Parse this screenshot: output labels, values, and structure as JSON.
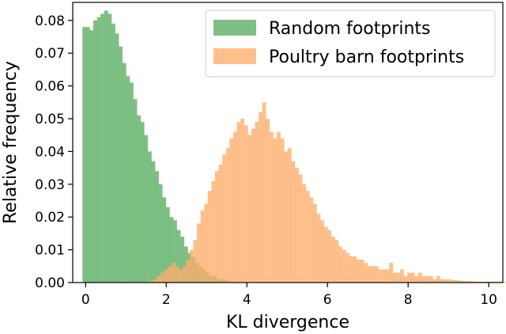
{
  "chart_data": {
    "type": "histogram",
    "xlabel": "KL divergence",
    "ylabel": "Relative frequency",
    "xlim": [
      -0.32,
      10.35
    ],
    "ylim": [
      0.0,
      0.0855
    ],
    "xticks": [
      0,
      2,
      4,
      6,
      8,
      10
    ],
    "yticks": [
      0.0,
      0.01,
      0.02,
      0.03,
      0.04,
      0.05,
      0.06,
      0.07,
      0.08
    ],
    "ytick_labels": [
      "0.00",
      "0.01",
      "0.02",
      "0.03",
      "0.04",
      "0.05",
      "0.06",
      "0.07",
      "0.08"
    ],
    "grid": false,
    "legend_position": "top-right",
    "series": [
      {
        "name": "Random footprints",
        "color": "#5aae61",
        "bin_start": -0.08,
        "bin_width": 0.09,
        "values": [
          0.078,
          0.078,
          0.077,
          0.08,
          0.081,
          0.082,
          0.083,
          0.082,
          0.079,
          0.076,
          0.072,
          0.067,
          0.063,
          0.061,
          0.056,
          0.051,
          0.049,
          0.045,
          0.04,
          0.037,
          0.034,
          0.03,
          0.026,
          0.023,
          0.02,
          0.019,
          0.016,
          0.014,
          0.011,
          0.009,
          0.008,
          0.006,
          0.005,
          0.004,
          0.003,
          0.002,
          0.002,
          0.001,
          0.001,
          0.001,
          0.0005,
          0.0003,
          0.0002
        ]
      },
      {
        "name": "Poultry barn footprints",
        "color": "#fdae6b",
        "bin_start": 1.5,
        "bin_width": 0.09,
        "values": [
          0.0003,
          0.0005,
          0.001,
          0.002,
          0.003,
          0.004,
          0.005,
          0.006,
          0.005,
          0.004,
          0.005,
          0.007,
          0.01,
          0.013,
          0.018,
          0.022,
          0.024,
          0.028,
          0.031,
          0.034,
          0.036,
          0.039,
          0.041,
          0.044,
          0.046,
          0.049,
          0.05,
          0.048,
          0.045,
          0.047,
          0.049,
          0.052,
          0.055,
          0.05,
          0.046,
          0.044,
          0.046,
          0.044,
          0.04,
          0.041,
          0.037,
          0.035,
          0.033,
          0.03,
          0.028,
          0.026,
          0.024,
          0.021,
          0.019,
          0.017,
          0.016,
          0.014,
          0.013,
          0.011,
          0.01,
          0.009,
          0.008,
          0.008,
          0.007,
          0.007,
          0.006,
          0.005,
          0.005,
          0.005,
          0.004,
          0.004,
          0.004,
          0.006,
          0.003,
          0.003,
          0.004,
          0.002,
          0.003,
          0.003,
          0.002,
          0.003,
          0.002,
          0.002,
          0.002,
          0.001,
          0.002,
          0.001,
          0.001,
          0.001,
          0.0008,
          0.0007,
          0.0006,
          0.0005,
          0.0005,
          0.0004,
          0.0004,
          0.0003,
          0.0003,
          0.0003,
          0.0003,
          0.0003,
          0.0002,
          0.0003,
          0.0002,
          0.0002,
          0.0002,
          0.0002,
          0.0002,
          0.0002,
          0.0001,
          0.0001,
          0.0001,
          0.0001,
          0.0001,
          0.0001,
          0.0001,
          0.0001,
          0.0001,
          0.0001,
          0.0001,
          0.0001,
          0.0001,
          0.0001,
          0.0001,
          0.0001,
          0.0001,
          0.0001,
          0.0001,
          0.0001,
          0.0001,
          0.0001,
          0.0001,
          0.0001,
          0.0001
        ]
      }
    ]
  }
}
